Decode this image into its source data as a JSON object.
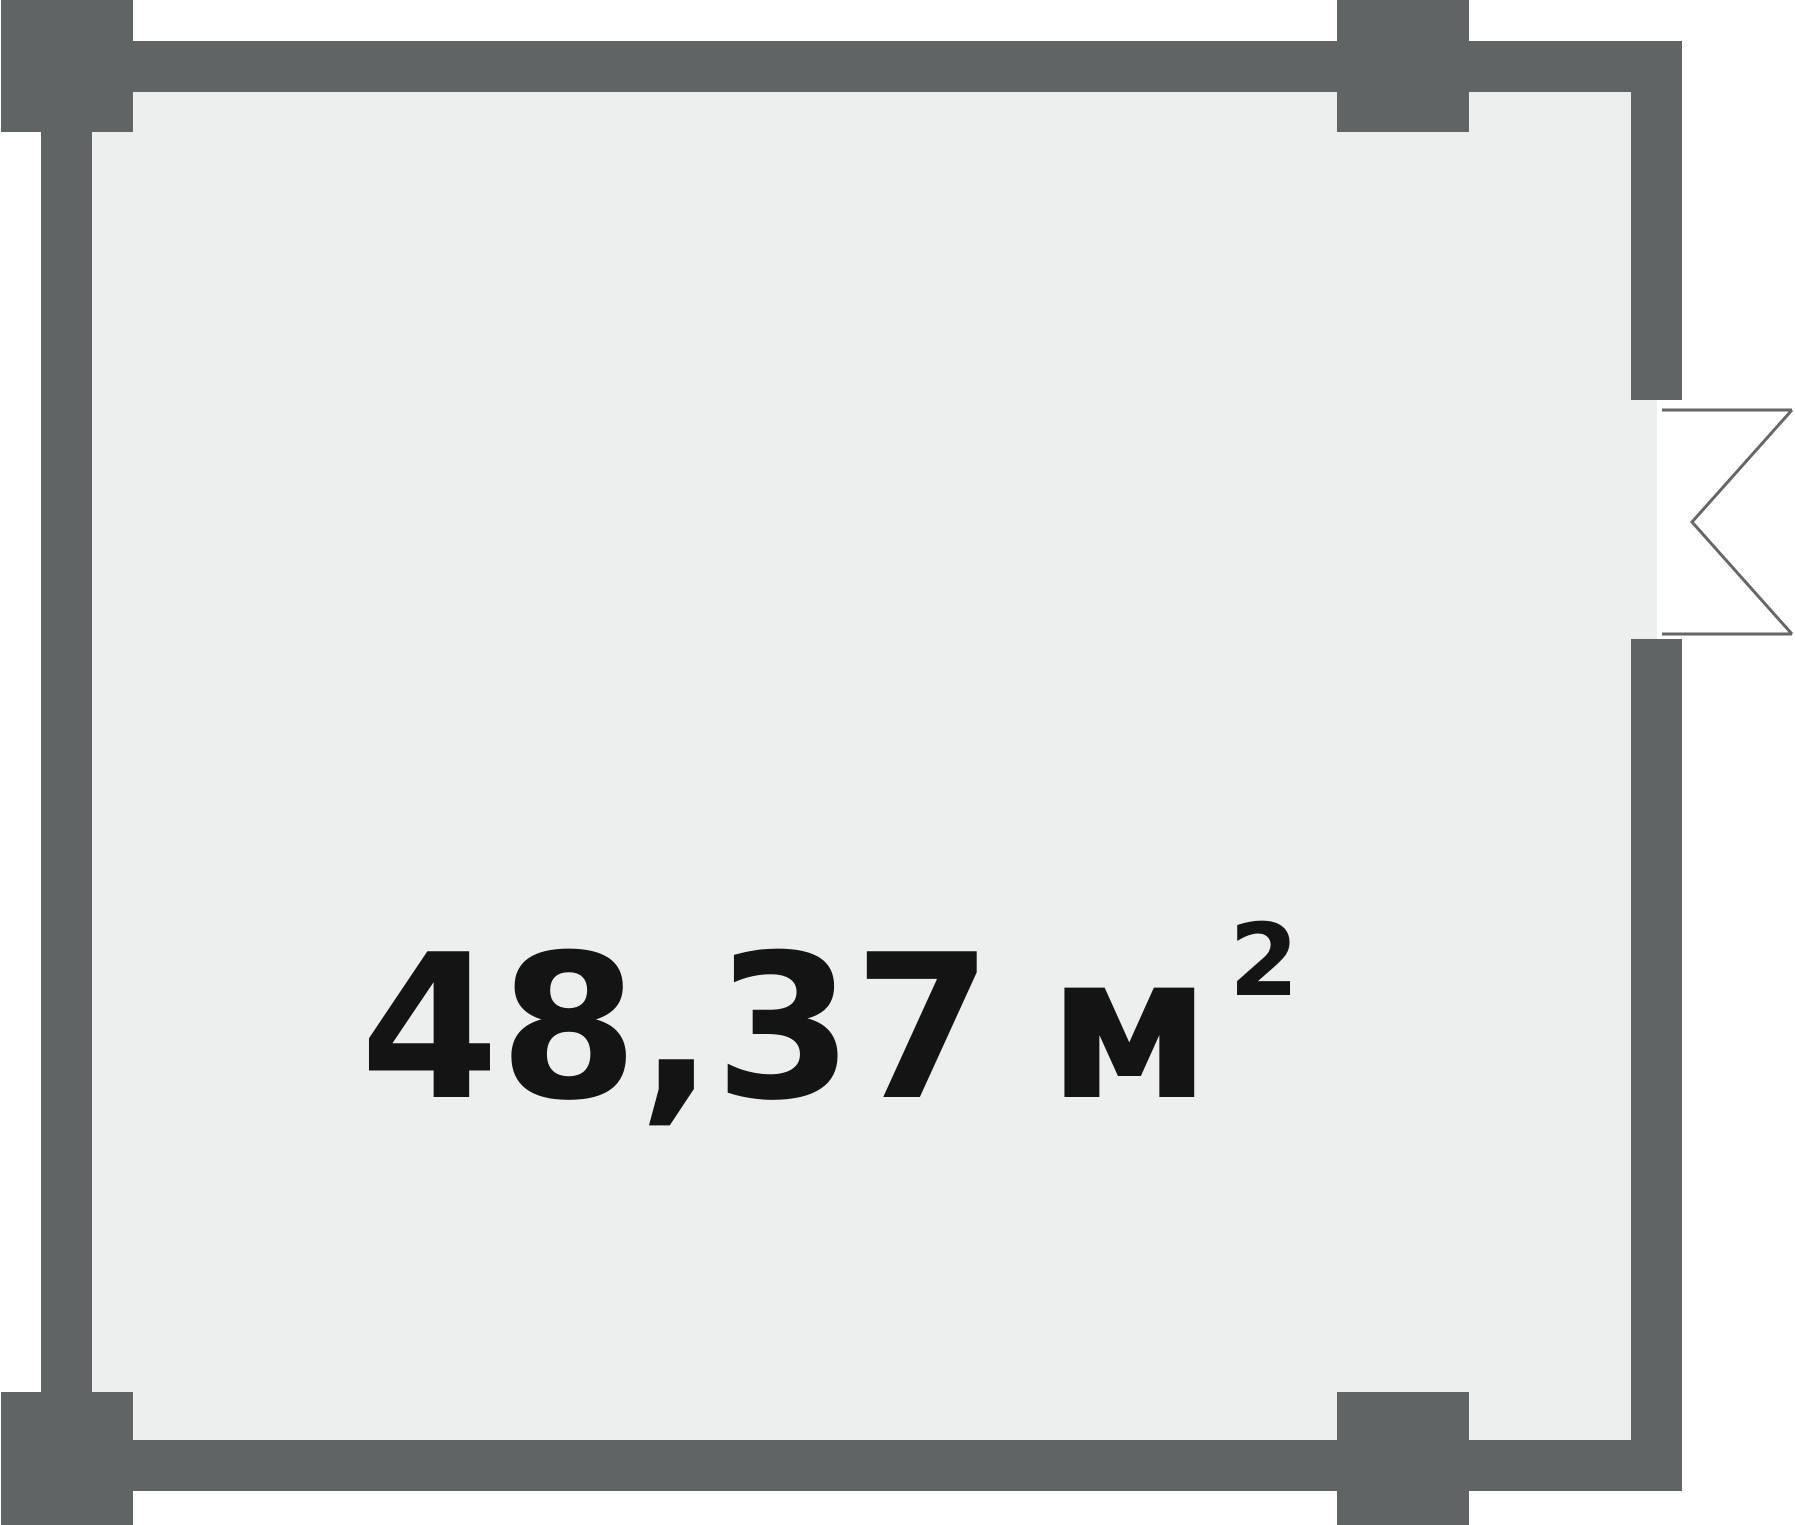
{
  "plan": {
    "area_value": "48,37",
    "area_unit": "м",
    "area_superscript": "2"
  },
  "colors": {
    "wall": "#606465",
    "floor": "#EDEFEE",
    "text": "#141414",
    "door_line": "#666666",
    "background": "#FFFFFF"
  },
  "icons": {
    "door": "door-swing-icon"
  }
}
